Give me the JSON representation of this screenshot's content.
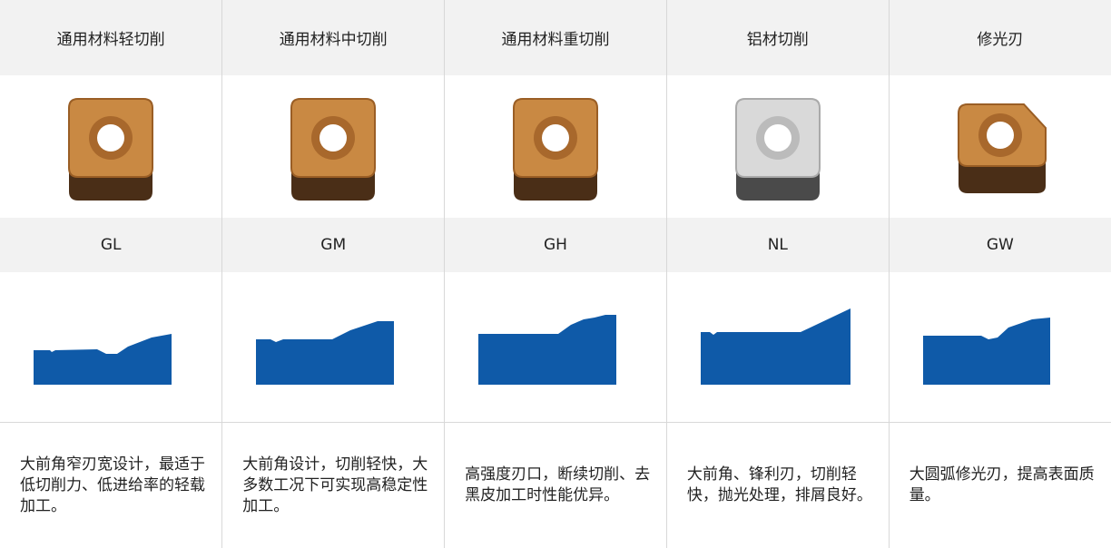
{
  "table": {
    "headers": [
      "通用材料轻切削",
      "通用材料中切削",
      "通用材料重切削",
      "铝材切削",
      "修光刃"
    ],
    "codes": [
      "GL",
      "GM",
      "GH",
      "NL",
      "GW"
    ],
    "descriptions": [
      "大前角窄刃宽设计，最适于低切削力、低进给率的轻载加工。",
      "大前角设计，切削轻快，大多数工况下可实现高稳定性加工。",
      "高强度刃口，断续切削、去黑皮加工时性能优异。",
      "大前角、锋利刃，切削轻快，抛光处理，排屑良好。",
      "大圆弧修光刃，提高表面质量。"
    ]
  }
}
